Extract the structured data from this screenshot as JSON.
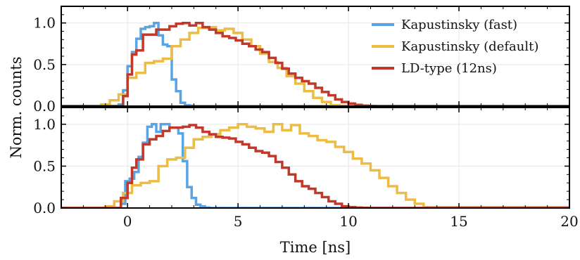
{
  "chart_data": {
    "type": "line",
    "step": true,
    "xlabel": "Time [ns]",
    "ylabel": "Norm. counts",
    "xlim": [
      -3,
      20
    ],
    "ylim": [
      0,
      1.2
    ],
    "xticks": [
      "0",
      "5",
      "10",
      "15",
      "20"
    ],
    "yticks": [
      "0.0",
      "0.5",
      "1.0"
    ],
    "grid": true,
    "legend": {
      "placement": "top-right, upper panel"
    },
    "series_styles": [
      {
        "name": "Kapustinsky (fast)",
        "color": "#5aa4e3"
      },
      {
        "name": "Kapustinsky (default)",
        "color": "#ecbc44"
      },
      {
        "name": "LD-type (12ns)",
        "color": "#c0392b"
      }
    ],
    "panels": [
      {
        "series": [
          {
            "name": "Kapustinsky (fast)",
            "x": [
              -3,
              -0.4,
              -0.2,
              0,
              0.2,
              0.4,
              0.6,
              0.8,
              1.0,
              1.2,
              1.4,
              1.6,
              1.8,
              2.0,
              2.2,
              2.4,
              2.6,
              2.8,
              3.0,
              20
            ],
            "y": [
              0,
              0.02,
              0.19,
              0.48,
              0.65,
              0.81,
              0.93,
              0.95,
              0.96,
              1.0,
              0.85,
              0.74,
              0.72,
              0.32,
              0.18,
              0.04,
              0.01,
              0.005,
              0,
              0
            ]
          },
          {
            "name": "Kapustinsky (default)",
            "x": [
              -3,
              -1.2,
              -0.8,
              -0.4,
              0,
              0.4,
              0.8,
              1.2,
              1.6,
              2.0,
              2.4,
              2.8,
              3.2,
              3.6,
              4.0,
              4.4,
              4.8,
              5.2,
              5.6,
              6.0,
              6.4,
              6.8,
              7.2,
              7.6,
              8.0,
              8.4,
              8.8,
              9.2,
              9.6,
              10.0,
              20
            ],
            "y": [
              0,
              0.02,
              0.07,
              0.14,
              0.34,
              0.4,
              0.52,
              0.54,
              0.57,
              0.72,
              0.8,
              0.88,
              0.94,
              0.95,
              0.91,
              0.93,
              0.88,
              0.8,
              0.72,
              0.63,
              0.53,
              0.46,
              0.36,
              0.27,
              0.18,
              0.1,
              0.05,
              0.01,
              0.005,
              0,
              0
            ]
          },
          {
            "name": "LD-type (12ns)",
            "x": [
              -3,
              -0.2,
              0,
              0.2,
              0.4,
              0.7,
              1.0,
              1.3,
              1.6,
              1.9,
              2.2,
              2.5,
              2.8,
              3.1,
              3.4,
              3.7,
              4.0,
              4.3,
              4.6,
              4.9,
              5.2,
              5.5,
              5.8,
              6.1,
              6.4,
              6.7,
              7.0,
              7.3,
              7.6,
              7.9,
              8.2,
              8.5,
              8.8,
              9.1,
              9.4,
              9.7,
              10.0,
              10.3,
              10.6,
              10.9,
              11.2,
              20
            ],
            "y": [
              0,
              0.12,
              0.38,
              0.62,
              0.67,
              0.86,
              0.86,
              0.92,
              0.92,
              0.96,
              0.99,
              1.0,
              0.97,
              1.0,
              0.95,
              0.92,
              0.88,
              0.84,
              0.82,
              0.79,
              0.75,
              0.72,
              0.68,
              0.65,
              0.58,
              0.52,
              0.45,
              0.39,
              0.34,
              0.3,
              0.27,
              0.22,
              0.17,
              0.13,
              0.08,
              0.05,
              0.03,
              0.015,
              0.005,
              0.002,
              0,
              0
            ]
          }
        ]
      },
      {
        "series": [
          {
            "name": "Kapustinsky (fast)",
            "x": [
              -3,
              -0.3,
              -0.1,
              0.1,
              0.3,
              0.5,
              0.7,
              0.9,
              1.1,
              1.3,
              1.5,
              1.7,
              1.9,
              2.1,
              2.3,
              2.5,
              2.7,
              2.9,
              3.1,
              3.3,
              3.5,
              3.7,
              20
            ],
            "y": [
              0,
              0.05,
              0.32,
              0.35,
              0.43,
              0.61,
              0.78,
              0.97,
              1.0,
              0.91,
              1.0,
              1.0,
              0.96,
              0.96,
              0.89,
              0.56,
              0.25,
              0.12,
              0.04,
              0.02,
              0.005,
              0,
              0
            ]
          },
          {
            "name": "Kapustinsky (default)",
            "x": [
              -3,
              -1.0,
              -0.6,
              -0.2,
              0.2,
              0.6,
              1.0,
              1.4,
              1.8,
              2.2,
              2.6,
              3.0,
              3.4,
              3.8,
              4.2,
              4.6,
              5.0,
              5.4,
              5.8,
              6.2,
              6.6,
              7.0,
              7.4,
              7.8,
              8.2,
              8.6,
              9.0,
              9.4,
              9.8,
              10.2,
              10.6,
              11.0,
              11.4,
              11.8,
              12.2,
              12.6,
              13.0,
              13.4,
              20
            ],
            "y": [
              0,
              0.02,
              0.08,
              0.18,
              0.27,
              0.3,
              0.32,
              0.5,
              0.58,
              0.6,
              0.72,
              0.82,
              0.85,
              0.88,
              0.93,
              0.96,
              1.0,
              0.97,
              0.95,
              0.91,
              1.0,
              0.93,
              0.99,
              0.89,
              0.86,
              0.81,
              0.79,
              0.73,
              0.67,
              0.59,
              0.53,
              0.45,
              0.36,
              0.26,
              0.18,
              0.1,
              0.05,
              0.01,
              0
            ]
          },
          {
            "name": "LD-type (12ns)",
            "x": [
              -3,
              -0.3,
              0,
              0.2,
              0.4,
              0.7,
              1.0,
              1.3,
              1.6,
              1.9,
              2.2,
              2.5,
              2.8,
              3.1,
              3.4,
              3.7,
              4.0,
              4.3,
              4.6,
              4.9,
              5.2,
              5.5,
              5.8,
              6.1,
              6.4,
              6.7,
              7.0,
              7.3,
              7.6,
              7.9,
              8.2,
              8.5,
              8.8,
              9.1,
              9.4,
              9.7,
              10.0,
              10.3,
              10.6,
              10.9,
              20
            ],
            "y": [
              0,
              0.12,
              0.3,
              0.48,
              0.58,
              0.76,
              0.82,
              0.86,
              0.92,
              0.96,
              0.96,
              0.97,
              0.99,
              0.96,
              0.91,
              0.88,
              0.85,
              0.84,
              0.83,
              0.79,
              0.76,
              0.72,
              0.68,
              0.66,
              0.62,
              0.55,
              0.48,
              0.4,
              0.32,
              0.26,
              0.23,
              0.18,
              0.13,
              0.08,
              0.05,
              0.02,
              0.01,
              0.005,
              0.002,
              0,
              0
            ]
          }
        ]
      }
    ]
  }
}
